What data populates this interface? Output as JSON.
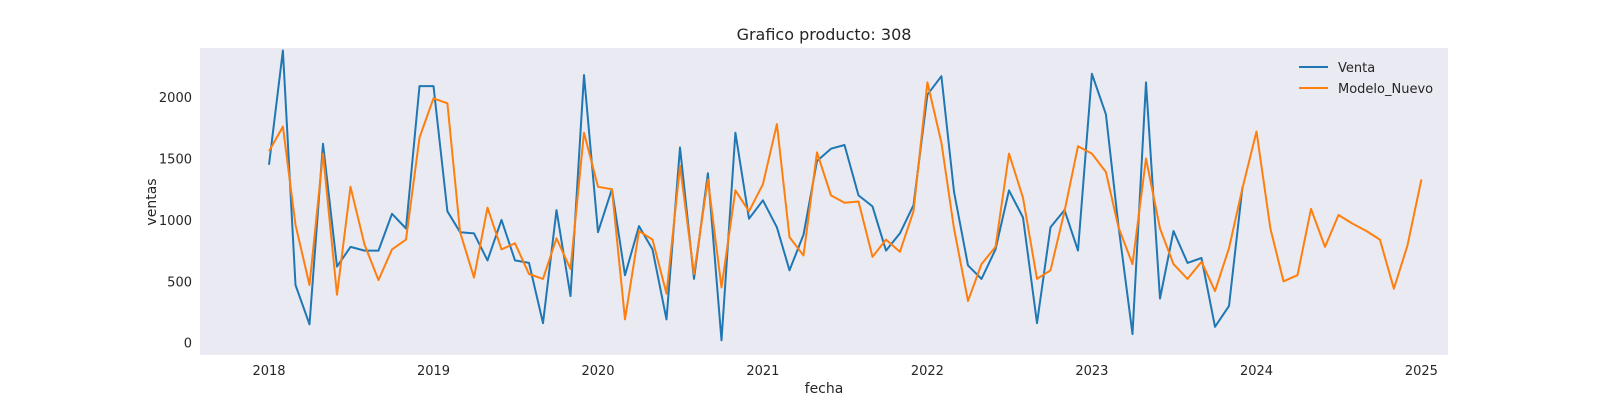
{
  "chart_data": {
    "type": "line",
    "title": "Grafico producto: 308",
    "xlabel": "fecha",
    "ylabel": "ventas",
    "grid": false,
    "legend_position": "top-right",
    "xlim": [
      "2017-08-01",
      "2025-03-01"
    ],
    "ylim": [
      -100,
      2400
    ],
    "x_ticks": [
      {
        "value": "2018-01-01",
        "label": "2018"
      },
      {
        "value": "2019-01-01",
        "label": "2019"
      },
      {
        "value": "2020-01-01",
        "label": "2020"
      },
      {
        "value": "2021-01-01",
        "label": "2021"
      },
      {
        "value": "2022-01-01",
        "label": "2022"
      },
      {
        "value": "2023-01-01",
        "label": "2023"
      },
      {
        "value": "2024-01-01",
        "label": "2024"
      },
      {
        "value": "2025-01-01",
        "label": "2025"
      }
    ],
    "y_ticks": [
      {
        "value": 0,
        "label": "0"
      },
      {
        "value": 500,
        "label": "500"
      },
      {
        "value": 1000,
        "label": "1000"
      },
      {
        "value": 1500,
        "label": "1500"
      },
      {
        "value": 2000,
        "label": "2000"
      }
    ],
    "series": [
      {
        "name": "Venta",
        "color": "#1f77b4",
        "points": [
          [
            "2018-01-01",
            1450
          ],
          [
            "2018-02-01",
            2380
          ],
          [
            "2018-03-01",
            470
          ],
          [
            "2018-04-01",
            150
          ],
          [
            "2018-05-01",
            1620
          ],
          [
            "2018-06-01",
            620
          ],
          [
            "2018-07-01",
            780
          ],
          [
            "2018-08-01",
            750
          ],
          [
            "2018-09-01",
            750
          ],
          [
            "2018-10-01",
            1050
          ],
          [
            "2018-11-01",
            930
          ],
          [
            "2018-12-01",
            2090
          ],
          [
            "2019-01-01",
            2090
          ],
          [
            "2019-02-01",
            1070
          ],
          [
            "2019-03-01",
            900
          ],
          [
            "2019-04-01",
            890
          ],
          [
            "2019-05-01",
            670
          ],
          [
            "2019-06-01",
            1000
          ],
          [
            "2019-07-01",
            670
          ],
          [
            "2019-08-01",
            650
          ],
          [
            "2019-09-01",
            160
          ],
          [
            "2019-10-01",
            1080
          ],
          [
            "2019-11-01",
            380
          ],
          [
            "2019-12-01",
            2180
          ],
          [
            "2020-01-01",
            900
          ],
          [
            "2020-02-01",
            1250
          ],
          [
            "2020-03-01",
            550
          ],
          [
            "2020-04-01",
            950
          ],
          [
            "2020-05-01",
            760
          ],
          [
            "2020-06-01",
            190
          ],
          [
            "2020-07-01",
            1590
          ],
          [
            "2020-08-01",
            520
          ],
          [
            "2020-09-01",
            1380
          ],
          [
            "2020-10-01",
            20
          ],
          [
            "2020-11-01",
            1710
          ],
          [
            "2020-12-01",
            1010
          ],
          [
            "2021-01-01",
            1160
          ],
          [
            "2021-02-01",
            940
          ],
          [
            "2021-03-01",
            590
          ],
          [
            "2021-04-01",
            880
          ],
          [
            "2021-05-01",
            1480
          ],
          [
            "2021-06-01",
            1580
          ],
          [
            "2021-07-01",
            1610
          ],
          [
            "2021-08-01",
            1200
          ],
          [
            "2021-09-01",
            1110
          ],
          [
            "2021-10-01",
            750
          ],
          [
            "2021-11-01",
            890
          ],
          [
            "2021-12-01",
            1120
          ],
          [
            "2022-01-01",
            2020
          ],
          [
            "2022-02-01",
            2170
          ],
          [
            "2022-03-01",
            1230
          ],
          [
            "2022-04-01",
            630
          ],
          [
            "2022-05-01",
            520
          ],
          [
            "2022-06-01",
            760
          ],
          [
            "2022-07-01",
            1240
          ],
          [
            "2022-08-01",
            1020
          ],
          [
            "2022-09-01",
            160
          ],
          [
            "2022-10-01",
            940
          ],
          [
            "2022-11-01",
            1080
          ],
          [
            "2022-12-01",
            750
          ],
          [
            "2023-01-01",
            2190
          ],
          [
            "2023-02-01",
            1860
          ],
          [
            "2023-03-01",
            950
          ],
          [
            "2023-04-01",
            70
          ],
          [
            "2023-05-01",
            2120
          ],
          [
            "2023-06-01",
            360
          ],
          [
            "2023-07-01",
            910
          ],
          [
            "2023-08-01",
            650
          ],
          [
            "2023-09-01",
            690
          ],
          [
            "2023-10-01",
            130
          ],
          [
            "2023-11-01",
            300
          ],
          [
            "2023-12-01",
            1270
          ]
        ]
      },
      {
        "name": "Modelo_Nuevo",
        "color": "#ff7f0e",
        "points": [
          [
            "2018-01-01",
            1560
          ],
          [
            "2018-02-01",
            1760
          ],
          [
            "2018-03-01",
            960
          ],
          [
            "2018-04-01",
            470
          ],
          [
            "2018-05-01",
            1540
          ],
          [
            "2018-06-01",
            390
          ],
          [
            "2018-07-01",
            1270
          ],
          [
            "2018-08-01",
            800
          ],
          [
            "2018-09-01",
            510
          ],
          [
            "2018-10-01",
            760
          ],
          [
            "2018-11-01",
            840
          ],
          [
            "2018-12-01",
            1670
          ],
          [
            "2019-01-01",
            1990
          ],
          [
            "2019-02-01",
            1950
          ],
          [
            "2019-03-01",
            900
          ],
          [
            "2019-04-01",
            530
          ],
          [
            "2019-05-01",
            1100
          ],
          [
            "2019-06-01",
            760
          ],
          [
            "2019-07-01",
            810
          ],
          [
            "2019-08-01",
            560
          ],
          [
            "2019-09-01",
            520
          ],
          [
            "2019-10-01",
            850
          ],
          [
            "2019-11-01",
            600
          ],
          [
            "2019-12-01",
            1710
          ],
          [
            "2020-01-01",
            1270
          ],
          [
            "2020-02-01",
            1250
          ],
          [
            "2020-03-01",
            190
          ],
          [
            "2020-04-01",
            910
          ],
          [
            "2020-05-01",
            840
          ],
          [
            "2020-06-01",
            400
          ],
          [
            "2020-07-01",
            1440
          ],
          [
            "2020-08-01",
            560
          ],
          [
            "2020-09-01",
            1330
          ],
          [
            "2020-10-01",
            450
          ],
          [
            "2020-11-01",
            1240
          ],
          [
            "2020-12-01",
            1070
          ],
          [
            "2021-01-01",
            1290
          ],
          [
            "2021-02-01",
            1780
          ],
          [
            "2021-03-01",
            860
          ],
          [
            "2021-04-01",
            710
          ],
          [
            "2021-05-01",
            1550
          ],
          [
            "2021-06-01",
            1200
          ],
          [
            "2021-07-01",
            1140
          ],
          [
            "2021-08-01",
            1150
          ],
          [
            "2021-09-01",
            700
          ],
          [
            "2021-10-01",
            840
          ],
          [
            "2021-11-01",
            740
          ],
          [
            "2021-12-01",
            1070
          ],
          [
            "2022-01-01",
            2120
          ],
          [
            "2022-02-01",
            1630
          ],
          [
            "2022-03-01",
            930
          ],
          [
            "2022-04-01",
            340
          ],
          [
            "2022-05-01",
            640
          ],
          [
            "2022-06-01",
            780
          ],
          [
            "2022-07-01",
            1540
          ],
          [
            "2022-08-01",
            1180
          ],
          [
            "2022-09-01",
            520
          ],
          [
            "2022-10-01",
            590
          ],
          [
            "2022-11-01",
            1070
          ],
          [
            "2022-12-01",
            1600
          ],
          [
            "2023-01-01",
            1540
          ],
          [
            "2023-02-01",
            1390
          ],
          [
            "2023-03-01",
            940
          ],
          [
            "2023-04-01",
            640
          ],
          [
            "2023-05-01",
            1500
          ],
          [
            "2023-06-01",
            930
          ],
          [
            "2023-07-01",
            640
          ],
          [
            "2023-08-01",
            520
          ],
          [
            "2023-09-01",
            660
          ],
          [
            "2023-10-01",
            420
          ],
          [
            "2023-11-01",
            770
          ],
          [
            "2023-12-01",
            1260
          ],
          [
            "2024-01-01",
            1720
          ],
          [
            "2024-02-01",
            930
          ],
          [
            "2024-03-01",
            500
          ],
          [
            "2024-04-01",
            550
          ],
          [
            "2024-05-01",
            1090
          ],
          [
            "2024-06-01",
            780
          ],
          [
            "2024-07-01",
            1040
          ],
          [
            "2024-08-01",
            970
          ],
          [
            "2024-09-01",
            910
          ],
          [
            "2024-10-01",
            840
          ],
          [
            "2024-11-01",
            440
          ],
          [
            "2024-12-01",
            790
          ],
          [
            "2025-01-01",
            1330
          ]
        ]
      }
    ]
  }
}
